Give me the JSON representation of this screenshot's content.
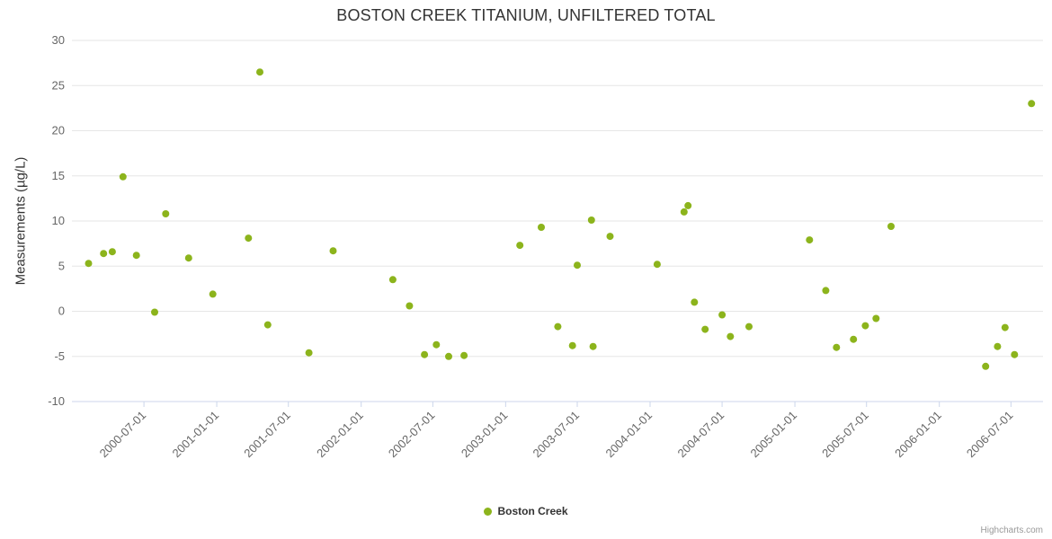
{
  "credits": "Highcharts.com",
  "chart_data": {
    "type": "scatter",
    "title": "BOSTON CREEK TITANIUM, UNFILTERED TOTAL",
    "xlabel": "",
    "ylabel": "Measurements (µg/L)",
    "ylim": [
      -10,
      30
    ],
    "yticks": [
      -10,
      -5,
      0,
      5,
      10,
      15,
      20,
      25,
      30
    ],
    "xlim": [
      "2000-01-01",
      "2006-09-20"
    ],
    "xticks": [
      "2000-07-01",
      "2001-01-01",
      "2001-07-01",
      "2002-01-01",
      "2002-07-01",
      "2003-01-01",
      "2003-07-01",
      "2004-01-01",
      "2004-07-01",
      "2005-01-01",
      "2005-07-01",
      "2006-01-01",
      "2006-07-01"
    ],
    "grid": "horizontal",
    "legend_position": "bottom-center",
    "series": [
      {
        "name": "Boston Creek",
        "color": "#8cb41c",
        "marker": "circle",
        "points": [
          [
            "2000-02-12",
            5.3
          ],
          [
            "2000-03-21",
            6.4
          ],
          [
            "2000-04-12",
            6.6
          ],
          [
            "2000-05-09",
            14.9
          ],
          [
            "2000-06-12",
            6.2
          ],
          [
            "2000-07-28",
            -0.1
          ],
          [
            "2000-08-25",
            10.8
          ],
          [
            "2000-10-22",
            5.9
          ],
          [
            "2000-12-22",
            1.9
          ],
          [
            "2001-03-22",
            8.1
          ],
          [
            "2001-04-20",
            26.5
          ],
          [
            "2001-05-10",
            -1.5
          ],
          [
            "2001-08-22",
            -4.6
          ],
          [
            "2001-10-22",
            6.7
          ],
          [
            "2002-03-22",
            3.5
          ],
          [
            "2002-05-03",
            0.6
          ],
          [
            "2002-06-10",
            -4.8
          ],
          [
            "2002-07-10",
            -3.7
          ],
          [
            "2002-08-10",
            -5.0
          ],
          [
            "2002-09-18",
            -4.9
          ],
          [
            "2003-02-06",
            7.3
          ],
          [
            "2003-04-01",
            9.3
          ],
          [
            "2003-05-13",
            -1.7
          ],
          [
            "2003-06-19",
            -3.8
          ],
          [
            "2003-07-01",
            5.1
          ],
          [
            "2003-08-06",
            10.1
          ],
          [
            "2003-08-10",
            -3.9
          ],
          [
            "2003-09-22",
            8.3
          ],
          [
            "2004-01-19",
            5.2
          ],
          [
            "2004-03-27",
            11.0
          ],
          [
            "2004-04-06",
            11.7
          ],
          [
            "2004-04-22",
            1.0
          ],
          [
            "2004-05-19",
            -2.0
          ],
          [
            "2004-07-01",
            -0.4
          ],
          [
            "2004-07-22",
            -2.8
          ],
          [
            "2004-09-07",
            -1.7
          ],
          [
            "2005-02-07",
            7.9
          ],
          [
            "2005-03-20",
            2.3
          ],
          [
            "2005-04-16",
            -4.0
          ],
          [
            "2005-05-29",
            -3.1
          ],
          [
            "2005-06-28",
            -1.6
          ],
          [
            "2005-07-25",
            -0.8
          ],
          [
            "2005-09-01",
            9.4
          ],
          [
            "2006-04-28",
            -6.1
          ],
          [
            "2006-05-28",
            -3.9
          ],
          [
            "2006-06-16",
            -1.8
          ],
          [
            "2006-07-10",
            -4.8
          ],
          [
            "2006-08-22",
            23.0
          ]
        ]
      }
    ]
  }
}
